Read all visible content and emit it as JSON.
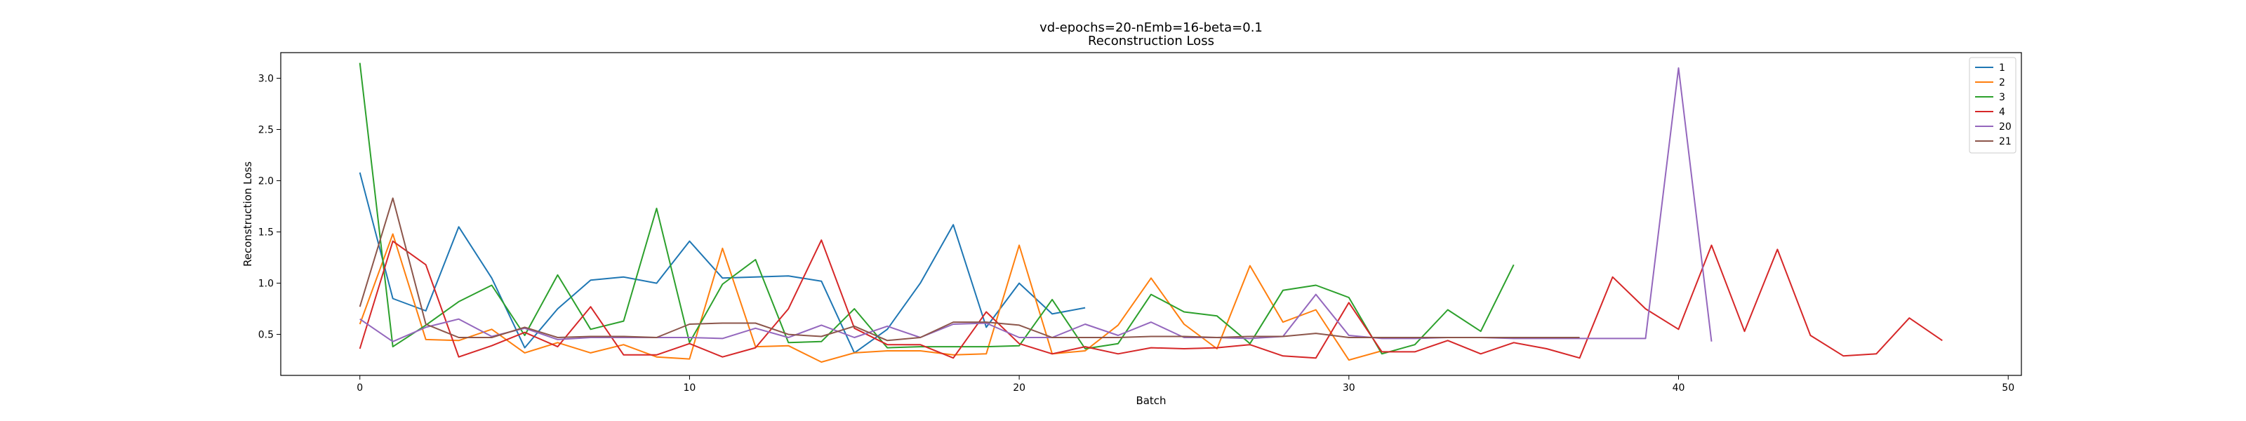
{
  "chart_data": {
    "type": "line",
    "title": "vd-epochs=20-nEmb=16-beta=0.1",
    "subtitle": "Reconstruction Loss",
    "xlabel": "Batch",
    "ylabel": "Reconstruction Loss",
    "xlim": [
      -2.4,
      50.4
    ],
    "ylim": [
      0.1,
      3.25
    ],
    "xticks": [
      0,
      10,
      20,
      30,
      40,
      50
    ],
    "yticks": [
      0.5,
      1.0,
      1.5,
      2.0,
      2.5,
      3.0
    ],
    "ytick_labels": [
      "0.5",
      "1.0",
      "1.5",
      "2.0",
      "2.5",
      "3.0"
    ],
    "grid": false,
    "legend_position": "top-right",
    "series": [
      {
        "name": "1",
        "color": "#1f77b4",
        "x": [
          0,
          1,
          2,
          3,
          4,
          5,
          6,
          7,
          8,
          9,
          10,
          11,
          12,
          13,
          14,
          15,
          16,
          17,
          18,
          19,
          20,
          21,
          22
        ],
        "y": [
          2.08,
          0.85,
          0.73,
          1.55,
          1.05,
          0.37,
          0.75,
          1.03,
          1.06,
          1.0,
          1.41,
          1.05,
          1.06,
          1.07,
          1.02,
          0.32,
          0.55,
          1.0,
          1.57,
          0.57,
          1.0,
          0.7,
          0.76
        ]
      },
      {
        "name": "2",
        "color": "#ff7f0e",
        "x": [
          0,
          1,
          2,
          3,
          4,
          5,
          6,
          7,
          8,
          9,
          10,
          11,
          12,
          13,
          14,
          15,
          16,
          17,
          18,
          19,
          20,
          21,
          22,
          23,
          24,
          25,
          26,
          27,
          28,
          29,
          30,
          31
        ],
        "y": [
          0.6,
          1.48,
          0.45,
          0.44,
          0.55,
          0.32,
          0.42,
          0.32,
          0.4,
          0.28,
          0.26,
          1.34,
          0.38,
          0.39,
          0.23,
          0.32,
          0.34,
          0.34,
          0.3,
          0.31,
          1.37,
          0.31,
          0.34,
          0.59,
          1.05,
          0.6,
          0.36,
          1.17,
          0.62,
          0.74,
          0.25,
          0.34
        ]
      },
      {
        "name": "3",
        "color": "#2ca02c",
        "x": [
          0,
          1,
          2,
          3,
          4,
          5,
          6,
          7,
          8,
          9,
          10,
          11,
          12,
          13,
          14,
          15,
          16,
          17,
          18,
          19,
          20,
          21,
          22,
          23,
          24,
          25,
          26,
          27,
          28,
          29,
          30,
          31,
          32,
          33,
          34,
          35
        ],
        "y": [
          3.15,
          0.38,
          0.59,
          0.82,
          0.98,
          0.49,
          1.08,
          0.55,
          0.63,
          1.73,
          0.42,
          0.99,
          1.23,
          0.42,
          0.43,
          0.75,
          0.37,
          0.38,
          0.38,
          0.38,
          0.39,
          0.84,
          0.36,
          0.41,
          0.89,
          0.72,
          0.68,
          0.41,
          0.93,
          0.98,
          0.86,
          0.31,
          0.4,
          0.74,
          0.53,
          1.18
        ]
      },
      {
        "name": "4",
        "color": "#d62728",
        "x": [
          0,
          1,
          2,
          3,
          4,
          5,
          6,
          7,
          8,
          9,
          10,
          11,
          12,
          13,
          14,
          15,
          16,
          17,
          18,
          19,
          20,
          21,
          22,
          23,
          24,
          25,
          26,
          27,
          28,
          29,
          30,
          31,
          32,
          33,
          34,
          35,
          36,
          37,
          38,
          39,
          40,
          41,
          42,
          43,
          44,
          45,
          46,
          47,
          48
        ],
        "y": [
          0.36,
          1.41,
          1.18,
          0.28,
          0.39,
          0.52,
          0.38,
          0.77,
          0.3,
          0.3,
          0.41,
          0.28,
          0.37,
          0.75,
          1.42,
          0.56,
          0.4,
          0.4,
          0.27,
          0.72,
          0.41,
          0.31,
          0.38,
          0.31,
          0.37,
          0.36,
          0.37,
          0.4,
          0.29,
          0.27,
          0.81,
          0.33,
          0.33,
          0.44,
          0.31,
          0.42,
          0.36,
          0.27,
          1.06,
          0.75,
          0.55,
          1.37,
          0.53,
          1.33,
          0.49,
          0.29,
          0.31,
          0.66,
          0.44
        ]
      },
      {
        "name": "20",
        "color": "#9467bd",
        "x": [
          0,
          1,
          2,
          3,
          4,
          5,
          6,
          7,
          8,
          9,
          10,
          11,
          12,
          13,
          14,
          15,
          16,
          17,
          18,
          19,
          20,
          21,
          22,
          23,
          24,
          25,
          26,
          27,
          28,
          29,
          30,
          31,
          32,
          33,
          34,
          35,
          36,
          37,
          38,
          39,
          40,
          41
        ],
        "y": [
          0.65,
          0.43,
          0.57,
          0.65,
          0.48,
          0.56,
          0.45,
          0.47,
          0.47,
          0.47,
          0.47,
          0.46,
          0.56,
          0.47,
          0.59,
          0.47,
          0.58,
          0.47,
          0.6,
          0.61,
          0.47,
          0.47,
          0.6,
          0.49,
          0.62,
          0.47,
          0.47,
          0.46,
          0.48,
          0.89,
          0.49,
          0.46,
          0.46,
          0.47,
          0.47,
          0.46,
          0.46,
          0.46,
          0.46,
          0.46,
          3.1,
          0.43
        ]
      },
      {
        "name": "21",
        "color": "#8c564b",
        "x": [
          0,
          1,
          2,
          3,
          4,
          5,
          6,
          7,
          8,
          9,
          10,
          11,
          12,
          13,
          14,
          15,
          16,
          17,
          18,
          19,
          20,
          21,
          22,
          23,
          24,
          25,
          26,
          27,
          28,
          29,
          30,
          31,
          32,
          33,
          34,
          35,
          36,
          37
        ],
        "y": [
          0.77,
          1.83,
          0.6,
          0.47,
          0.47,
          0.57,
          0.47,
          0.48,
          0.48,
          0.47,
          0.6,
          0.61,
          0.61,
          0.5,
          0.48,
          0.58,
          0.44,
          0.47,
          0.62,
          0.62,
          0.59,
          0.47,
          0.47,
          0.47,
          0.48,
          0.48,
          0.47,
          0.48,
          0.48,
          0.51,
          0.47,
          0.47,
          0.47,
          0.47,
          0.47,
          0.47,
          0.47,
          0.47
        ]
      }
    ]
  }
}
